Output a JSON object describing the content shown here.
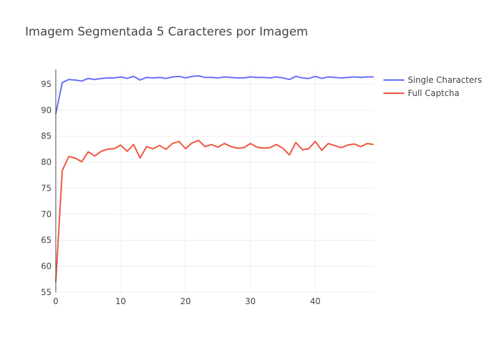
{
  "chart_data": {
    "type": "line",
    "title": "Imagem Segmentada 5 Caracteres por Imagem",
    "xlabel": "",
    "ylabel": "",
    "xlim": [
      0,
      49
    ],
    "ylim": [
      55,
      97.8
    ],
    "x_ticks": [
      0,
      10,
      20,
      30,
      40
    ],
    "y_ticks": [
      55,
      60,
      65,
      70,
      75,
      80,
      85,
      90,
      95
    ],
    "grid": true,
    "legend_position": "top-right",
    "x": [
      0,
      1,
      2,
      3,
      4,
      5,
      6,
      7,
      8,
      9,
      10,
      11,
      12,
      13,
      14,
      15,
      16,
      17,
      18,
      19,
      20,
      21,
      22,
      23,
      24,
      25,
      26,
      27,
      28,
      29,
      30,
      31,
      32,
      33,
      34,
      35,
      36,
      37,
      38,
      39,
      40,
      41,
      42,
      43,
      44,
      45,
      46,
      47,
      48,
      49
    ],
    "series": [
      {
        "name": "Single Characters",
        "color": "#636efa",
        "values": [
          89.3,
          95.3,
          95.9,
          95.8,
          95.6,
          96.1,
          95.9,
          96.1,
          96.2,
          96.2,
          96.4,
          96.1,
          96.5,
          95.8,
          96.3,
          96.2,
          96.3,
          96.1,
          96.4,
          96.5,
          96.2,
          96.5,
          96.6,
          96.3,
          96.3,
          96.2,
          96.4,
          96.3,
          96.2,
          96.2,
          96.4,
          96.3,
          96.3,
          96.2,
          96.4,
          96.2,
          95.9,
          96.5,
          96.2,
          96.1,
          96.5,
          96.1,
          96.4,
          96.3,
          96.2,
          96.3,
          96.4,
          96.3,
          96.4,
          96.4
        ]
      },
      {
        "name": "Full Captcha",
        "color": "#ef553b",
        "values": [
          57.0,
          78.4,
          81.1,
          80.8,
          80.1,
          82.0,
          81.2,
          82.1,
          82.5,
          82.6,
          83.3,
          82.1,
          83.4,
          80.8,
          83.0,
          82.6,
          83.2,
          82.5,
          83.6,
          84.0,
          82.6,
          83.7,
          84.2,
          83.0,
          83.4,
          82.9,
          83.6,
          83.0,
          82.7,
          82.8,
          83.6,
          82.9,
          82.7,
          82.8,
          83.4,
          82.7,
          81.4,
          83.8,
          82.4,
          82.6,
          84.0,
          82.3,
          83.6,
          83.2,
          82.8,
          83.3,
          83.5,
          83.0,
          83.6,
          83.4
        ]
      }
    ]
  }
}
